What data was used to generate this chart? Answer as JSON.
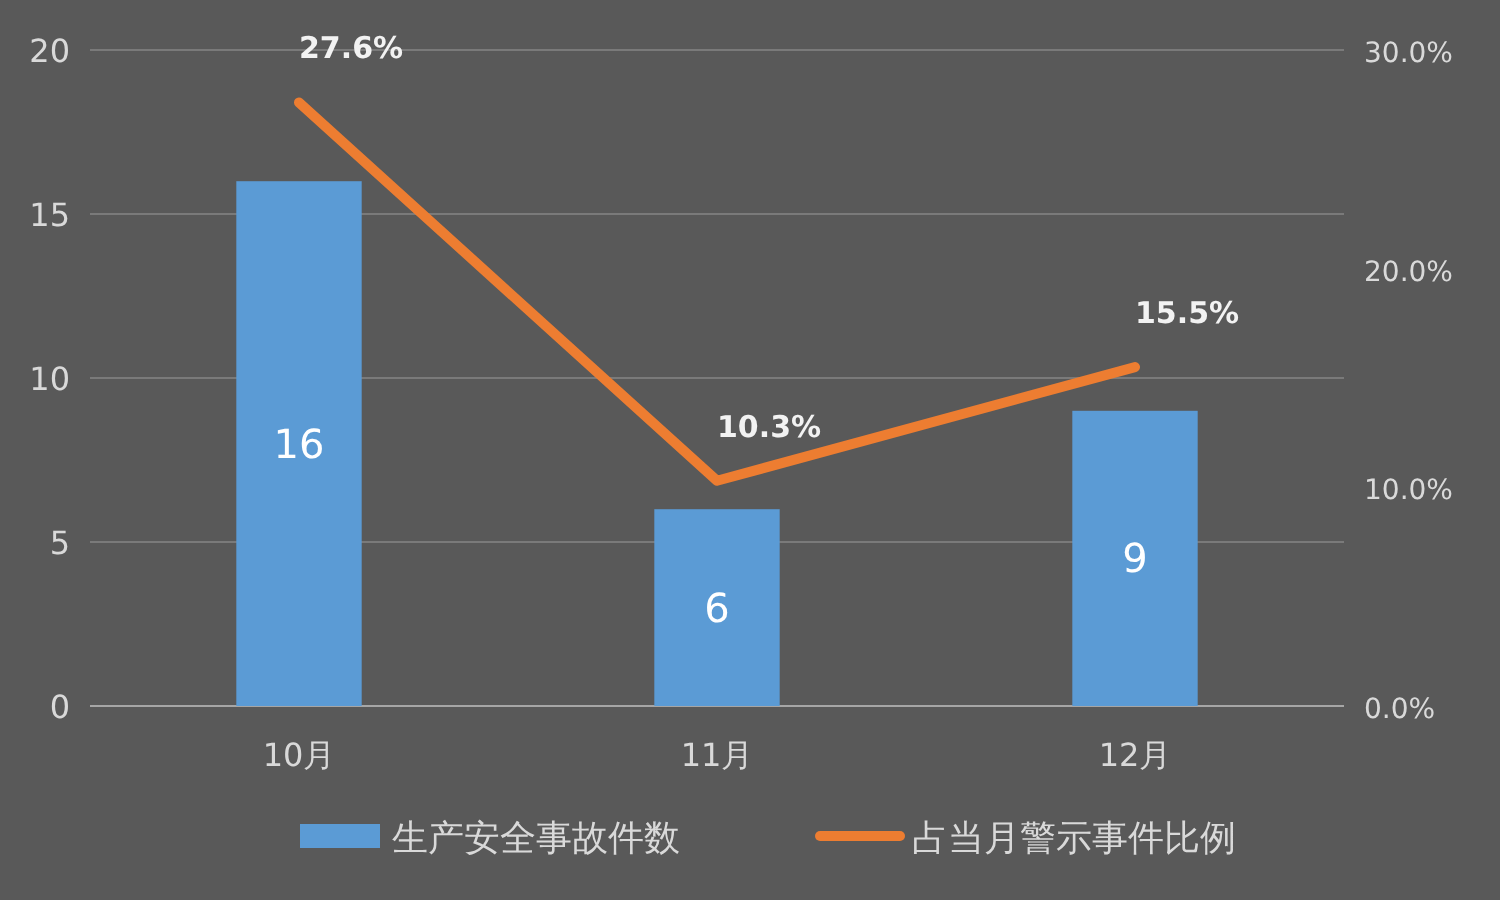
{
  "chart_data": {
    "type": "bar",
    "categories": [
      "10月",
      "11月",
      "12月"
    ],
    "series": [
      {
        "name": "生产安全事故件数",
        "color": "#5b9bd5",
        "values": [
          16,
          6,
          9
        ],
        "value_labels": [
          "16",
          "6",
          "9"
        ]
      },
      {
        "name": "占当月警示事件比例",
        "type": "line",
        "axis": "y2",
        "color": "#ed7d31",
        "values": [
          27.6,
          10.3,
          15.5
        ],
        "value_labels": [
          "27.6%",
          "10.3%",
          "15.5%"
        ]
      }
    ],
    "ylim": [
      0,
      20
    ],
    "yticks": [
      0,
      5,
      10,
      15,
      20
    ],
    "y2lim": [
      0,
      30
    ],
    "y2ticks": [
      {
        "value": 0,
        "label": "0.0%"
      },
      {
        "value": 10,
        "label": "10.0%"
      },
      {
        "value": 20,
        "label": "20.0%"
      },
      {
        "value": 30,
        "label": "30.0%"
      }
    ],
    "grid": "y",
    "legend": "bottom"
  }
}
